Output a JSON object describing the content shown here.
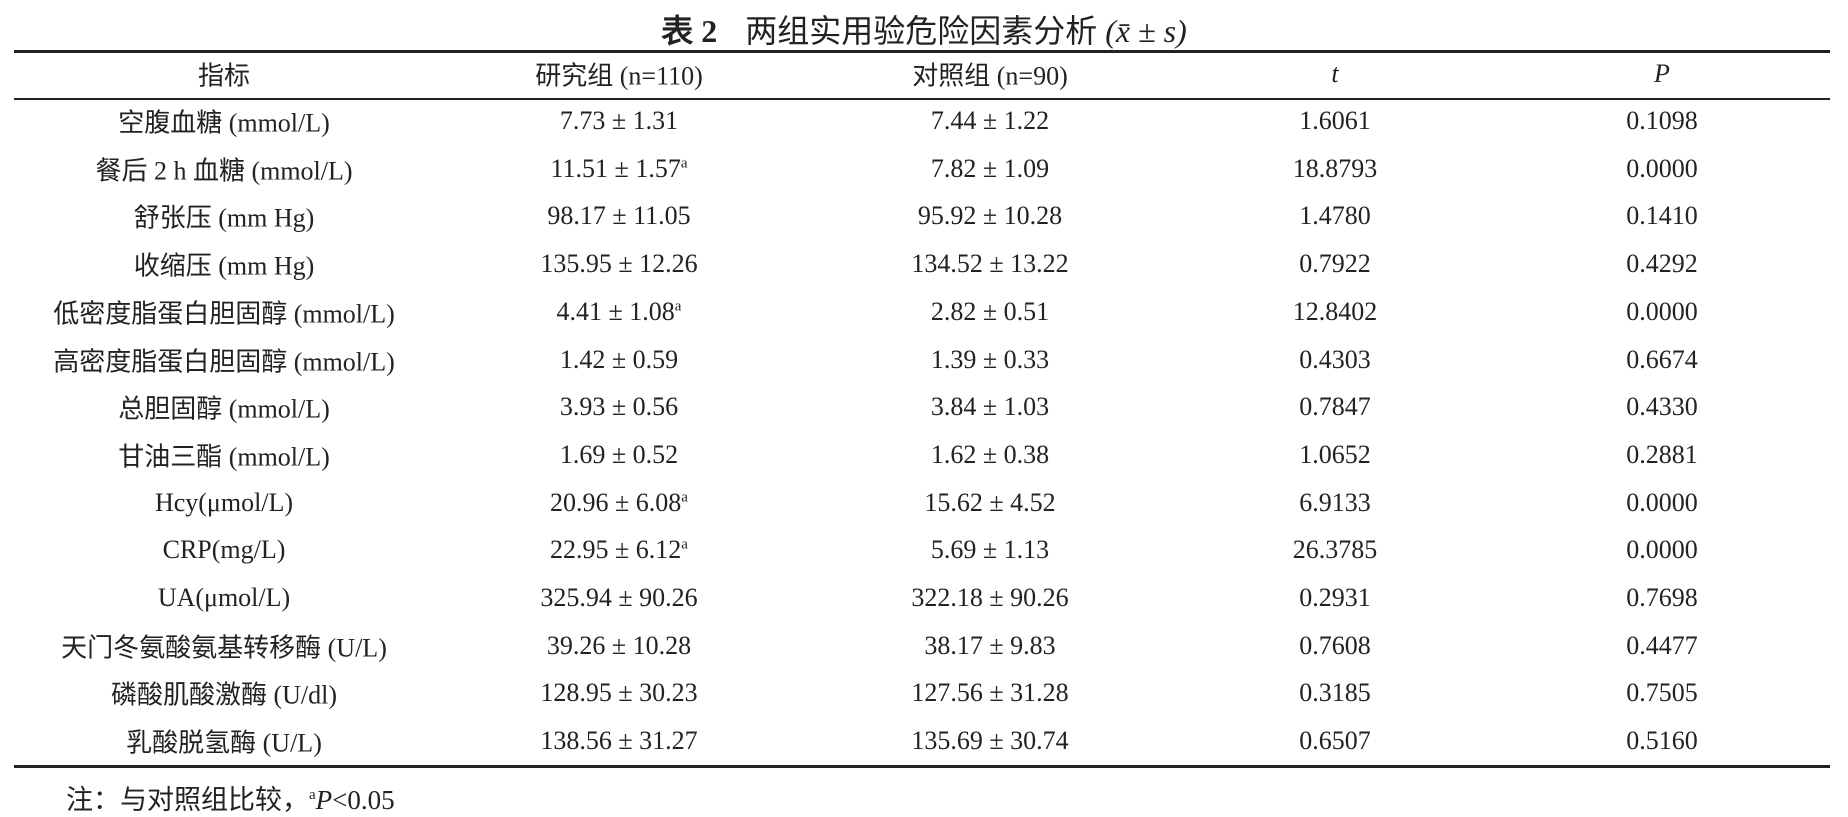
{
  "title": {
    "label": "表 2",
    "text": "两组实用验危险因素分析",
    "formula": "(x̄ ± s)"
  },
  "table": {
    "header": [
      "指标",
      "研究组 (n=110)",
      "对照组 (n=90)",
      "t",
      "P"
    ],
    "rows": [
      [
        "空腹血糖 (mmol/L)",
        {
          "text": "7.73 ± 1.31"
        },
        "7.44 ± 1.22",
        "1.6061",
        "0.1098"
      ],
      [
        "餐后 2 h 血糖 (mmol/L)",
        {
          "text": "11.51 ± 1.57",
          "sup": "a"
        },
        "7.82 ± 1.09",
        "18.8793",
        "0.0000"
      ],
      [
        "舒张压 (mm Hg)",
        {
          "text": "98.17 ± 11.05"
        },
        "95.92 ± 10.28",
        "1.4780",
        "0.1410"
      ],
      [
        "收缩压 (mm Hg)",
        {
          "text": "135.95 ± 12.26"
        },
        "134.52 ± 13.22",
        "0.7922",
        "0.4292"
      ],
      [
        "低密度脂蛋白胆固醇 (mmol/L)",
        {
          "text": "4.41 ± 1.08",
          "sup": "a"
        },
        "2.82 ± 0.51",
        "12.8402",
        "0.0000"
      ],
      [
        "高密度脂蛋白胆固醇 (mmol/L)",
        {
          "text": "1.42 ± 0.59"
        },
        "1.39 ± 0.33",
        "0.4303",
        "0.6674"
      ],
      [
        "总胆固醇 (mmol/L)",
        {
          "text": "3.93 ± 0.56"
        },
        "3.84 ± 1.03",
        "0.7847",
        "0.4330"
      ],
      [
        "甘油三酯 (mmol/L)",
        {
          "text": "1.69 ± 0.52"
        },
        "1.62 ± 0.38",
        "1.0652",
        "0.2881"
      ],
      [
        "Hcy(μmol/L)",
        {
          "text": "20.96 ± 6.08",
          "sup": "a"
        },
        "15.62 ± 4.52",
        "6.9133",
        "0.0000"
      ],
      [
        "CRP(mg/L)",
        {
          "text": "22.95 ± 6.12",
          "sup": "a"
        },
        "5.69 ± 1.13",
        "26.3785",
        "0.0000"
      ],
      [
        "UA(μmol/L)",
        {
          "text": "325.94 ± 90.26"
        },
        "322.18 ± 90.26",
        "0.2931",
        "0.7698"
      ],
      [
        "天门冬氨酸氨基转移酶 (U/L)",
        {
          "text": "39.26 ± 10.28"
        },
        "38.17 ± 9.83",
        "0.7608",
        "0.4477"
      ],
      [
        "磷酸肌酸激酶 (U/dl)",
        {
          "text": "128.95 ± 30.23"
        },
        "127.56 ± 31.28",
        "0.3185",
        "0.7505"
      ],
      [
        "乳酸脱氢酶 (U/L)",
        {
          "text": "138.56 ± 31.27"
        },
        "135.69 ± 30.74",
        "0.6507",
        "0.5160"
      ]
    ]
  },
  "note": {
    "prefix": "注：与对照组比较，",
    "sup": "a",
    "italic": "P",
    "rest": "<0.05"
  }
}
